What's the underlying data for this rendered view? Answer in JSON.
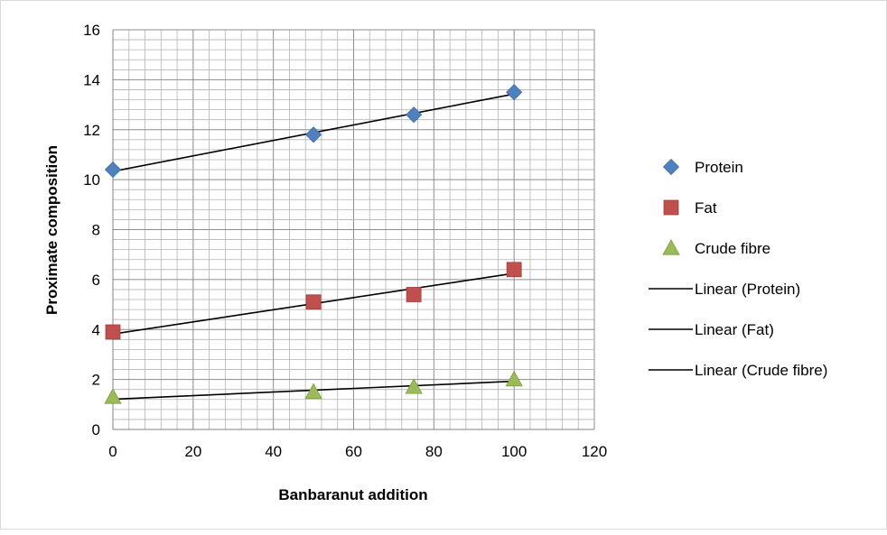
{
  "chart_data": {
    "type": "scatter",
    "title": "",
    "xlabel": "Banbaranut addition",
    "ylabel": "Proximate composition",
    "xlim": [
      0,
      120
    ],
    "ylim": [
      0,
      16
    ],
    "x_ticks": [
      "0",
      "20",
      "40",
      "60",
      "80",
      "100",
      "120"
    ],
    "y_ticks": [
      "0",
      "2",
      "4",
      "6",
      "8",
      "10",
      "12",
      "14",
      "16"
    ],
    "grid": true,
    "legend_position": "right",
    "series": [
      {
        "name": "Protein",
        "marker": "diamond",
        "color": "#4f81bd",
        "x": [
          0,
          50,
          75,
          100
        ],
        "y": [
          10.4,
          11.8,
          12.6,
          13.5
        ]
      },
      {
        "name": "Fat",
        "marker": "square",
        "color": "#c0504d",
        "x": [
          0,
          50,
          75,
          100
        ],
        "y": [
          3.9,
          5.1,
          5.4,
          6.4
        ]
      },
      {
        "name": "Crude fibre",
        "marker": "triangle",
        "color": "#9bbb59",
        "x": [
          0,
          50,
          75,
          100
        ],
        "y": [
          1.3,
          1.5,
          1.7,
          2.0
        ]
      }
    ],
    "trendlines": [
      {
        "name": "Linear (Protein)",
        "color": "#000000",
        "x": [
          0,
          100
        ],
        "y": [
          10.33,
          13.43
        ]
      },
      {
        "name": "Linear (Fat)",
        "color": "#000000",
        "x": [
          0,
          100
        ],
        "y": [
          3.82,
          6.25
        ]
      },
      {
        "name": "Linear (Crude fibre)",
        "color": "#000000",
        "x": [
          0,
          100
        ],
        "y": [
          1.21,
          1.93
        ]
      }
    ]
  }
}
